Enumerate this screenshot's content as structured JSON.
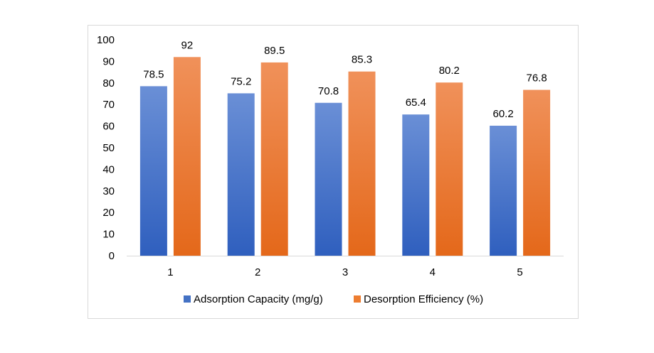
{
  "chart_data": {
    "type": "bar",
    "title": "",
    "xlabel": "",
    "ylabel": "",
    "categories": [
      "1",
      "2",
      "3",
      "4",
      "5"
    ],
    "series": [
      {
        "name": "Adsorption Capacity (mg/g)",
        "values": [
          78.5,
          75.2,
          70.8,
          65.4,
          60.2
        ],
        "color": "#4472C4",
        "labels": [
          "78.5",
          "75.2",
          "70.8",
          "65.4",
          "60.2"
        ]
      },
      {
        "name": "Desorption Efficiency (%)",
        "values": [
          92,
          89.5,
          85.3,
          80.2,
          76.8
        ],
        "color": "#ED7D31",
        "labels": [
          "92",
          "89.5",
          "85.3",
          "80.2",
          "76.8"
        ]
      }
    ],
    "ylim": [
      0,
      100
    ],
    "yticks": [
      "0",
      "10",
      "20",
      "30",
      "40",
      "50",
      "60",
      "70",
      "80",
      "90",
      "100"
    ],
    "grid": false,
    "legend": "bottom"
  }
}
